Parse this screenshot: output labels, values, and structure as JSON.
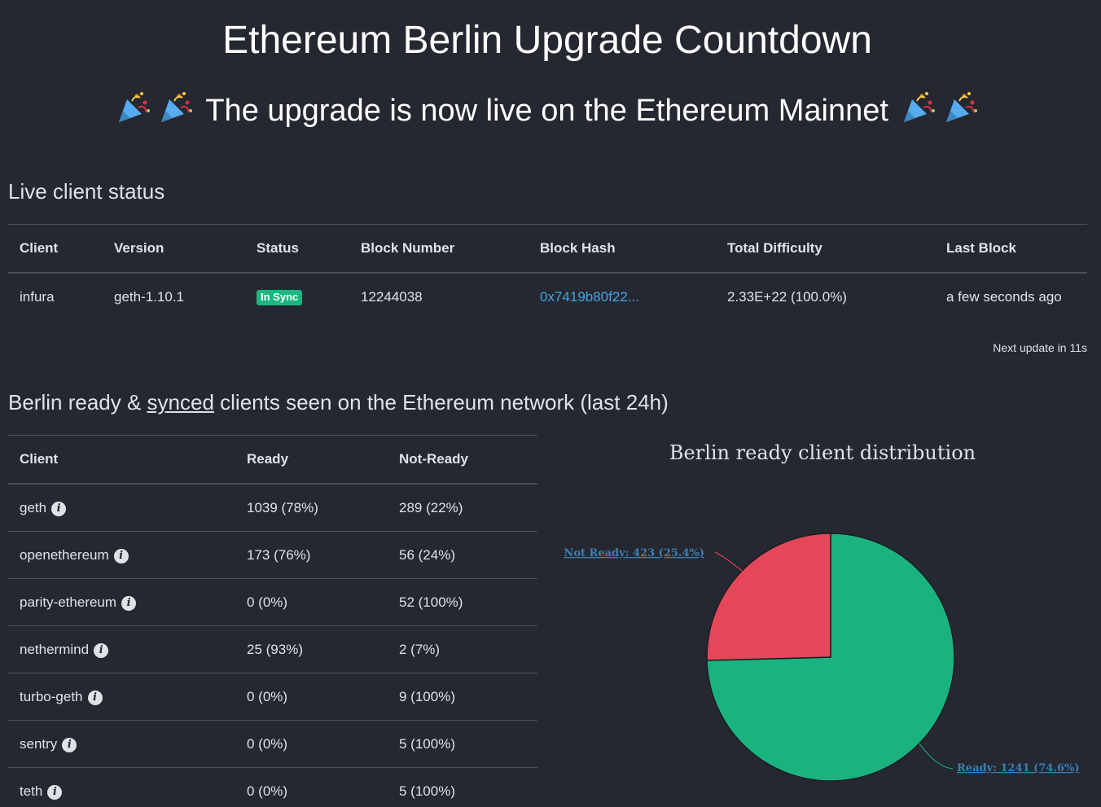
{
  "header": {
    "title": "Ethereum Berlin Upgrade Countdown",
    "subtitle": "The upgrade is now live on the Ethereum Mainnet",
    "party_icon": "party-popper-icon"
  },
  "live_status": {
    "heading": "Live client status",
    "columns": [
      "Client",
      "Version",
      "Status",
      "Block Number",
      "Block Hash",
      "Total Difficulty",
      "Last Block"
    ],
    "row": {
      "client": "infura",
      "version": "geth-1.10.1",
      "status": "In Sync",
      "block_number": "12244038",
      "block_hash": "0x7419b80f22...",
      "total_difficulty": "2.33E+22 (100.0%)",
      "last_block": "a few seconds ago"
    },
    "status_color": "#1cb57f",
    "next_update": "Next update in 11s"
  },
  "ready_section": {
    "heading_prefix": "Berlin ready & ",
    "heading_underlined": "synced",
    "heading_suffix": " clients seen on the Ethereum network (last 24h)",
    "columns": [
      "Client",
      "Ready",
      "Not-Ready"
    ],
    "rows": [
      {
        "client": "geth",
        "ready": "1039 (78%)",
        "not_ready": "289 (22%)"
      },
      {
        "client": "openethereum",
        "ready": "173 (76%)",
        "not_ready": "56 (24%)"
      },
      {
        "client": "parity-ethereum",
        "ready": "0 (0%)",
        "not_ready": "52 (100%)"
      },
      {
        "client": "nethermind",
        "ready": "25 (93%)",
        "not_ready": "2 (7%)"
      },
      {
        "client": "turbo-geth",
        "ready": "0 (0%)",
        "not_ready": "9 (100%)"
      },
      {
        "client": "sentry",
        "ready": "0 (0%)",
        "not_ready": "5 (100%)"
      },
      {
        "client": "teth",
        "ready": "0 (0%)",
        "not_ready": "5 (100%)"
      }
    ],
    "info_icon": "info-icon"
  },
  "chart_data": {
    "type": "pie",
    "title": "Berlin ready client distribution",
    "slices": [
      {
        "name": "Ready",
        "value": 1241,
        "label": "Ready: 1241 (74.6%)",
        "color": "#1ab37f"
      },
      {
        "name": "Not Ready",
        "value": 423,
        "label": "Not Ready: 423 (25.4%)",
        "color": "#e4475a"
      }
    ]
  }
}
